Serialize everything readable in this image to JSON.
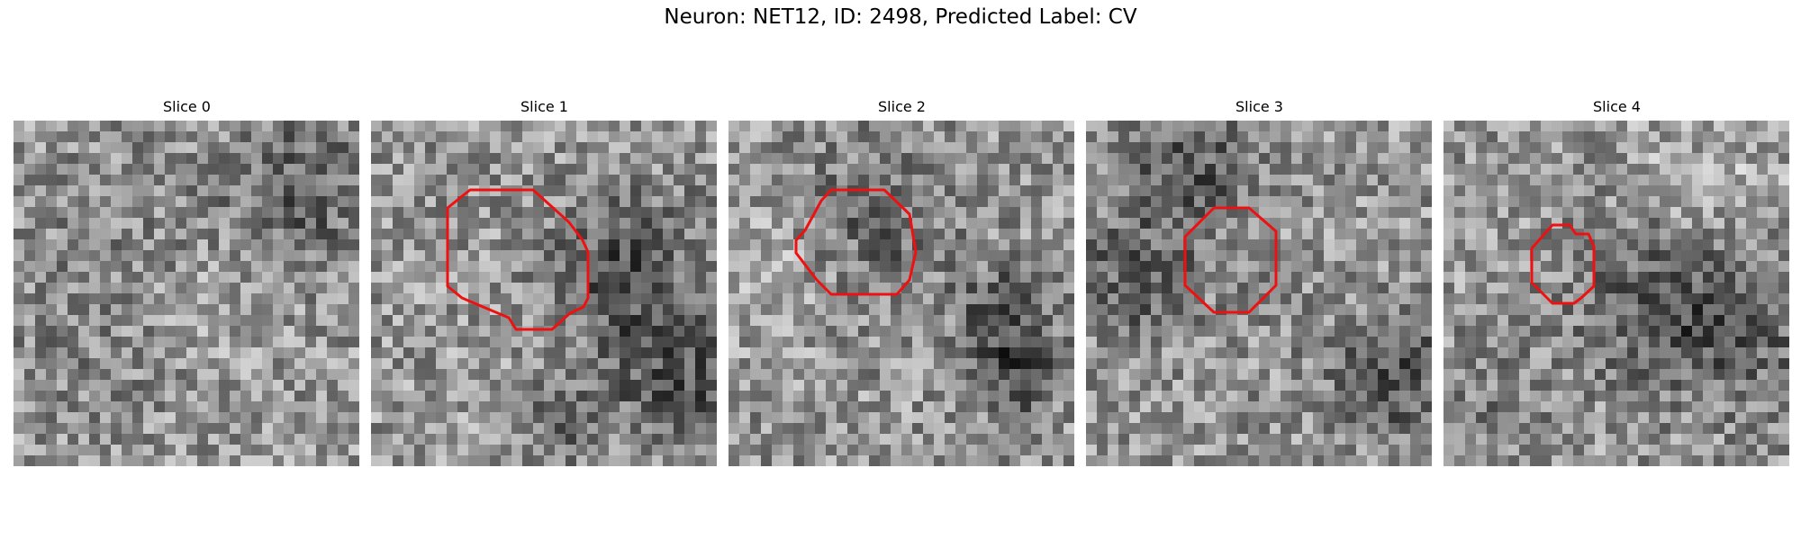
{
  "figure": {
    "title": "Neuron: NET12, ID: 2498, Predicted Label: CV",
    "colors": {
      "contour": "#ee1111",
      "background": "#ffffff"
    },
    "colormap": "gray"
  },
  "slices": [
    {
      "label": "Slice 0",
      "has_contour": false
    },
    {
      "label": "Slice 1",
      "has_contour": true
    },
    {
      "label": "Slice 2",
      "has_contour": true
    },
    {
      "label": "Slice 3",
      "has_contour": true
    },
    {
      "label": "Slice 4",
      "has_contour": true
    }
  ]
}
